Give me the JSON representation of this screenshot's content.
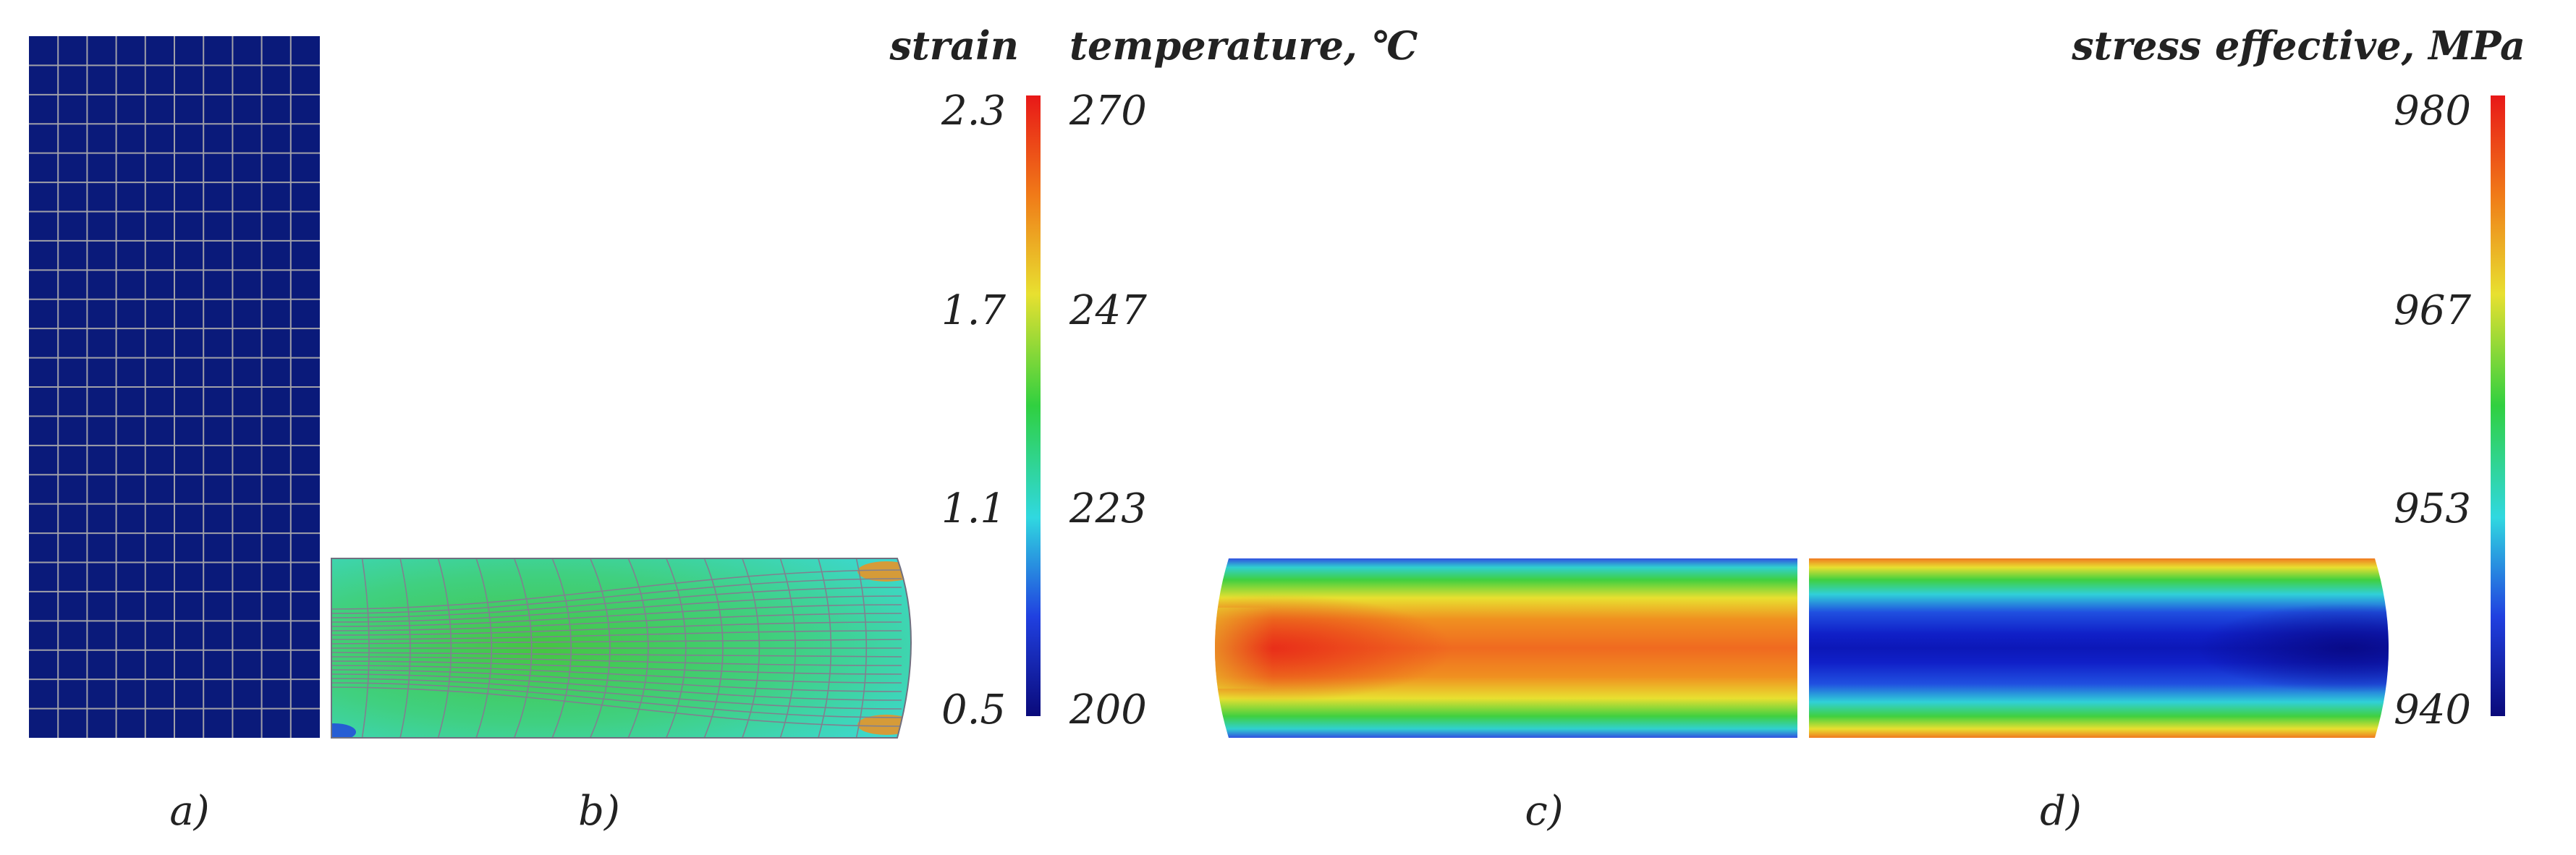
{
  "panels": {
    "a": {
      "caption": "a)"
    },
    "b": {
      "caption": "b)"
    },
    "c": {
      "caption": "c)"
    },
    "d": {
      "caption": "d)"
    }
  },
  "scales": {
    "strain": {
      "title": "strain",
      "ticks": [
        "2.3",
        "1.7",
        "1.1",
        "0.5"
      ]
    },
    "temperature": {
      "title": "temperature, ℃",
      "ticks": [
        "270",
        "247",
        "223",
        "200"
      ]
    },
    "stress": {
      "title": "stress effective, MPa",
      "ticks": [
        "980",
        "967",
        "953",
        "940"
      ]
    }
  },
  "colors": {
    "mesh_fill": "#0a1a7a",
    "mesh_line": "#a0a0a8",
    "colormap": [
      "#0a0a8c",
      "#1a3cd8",
      "#30c8e8",
      "#3fd060",
      "#e8e030",
      "#f08020",
      "#e02020"
    ]
  }
}
